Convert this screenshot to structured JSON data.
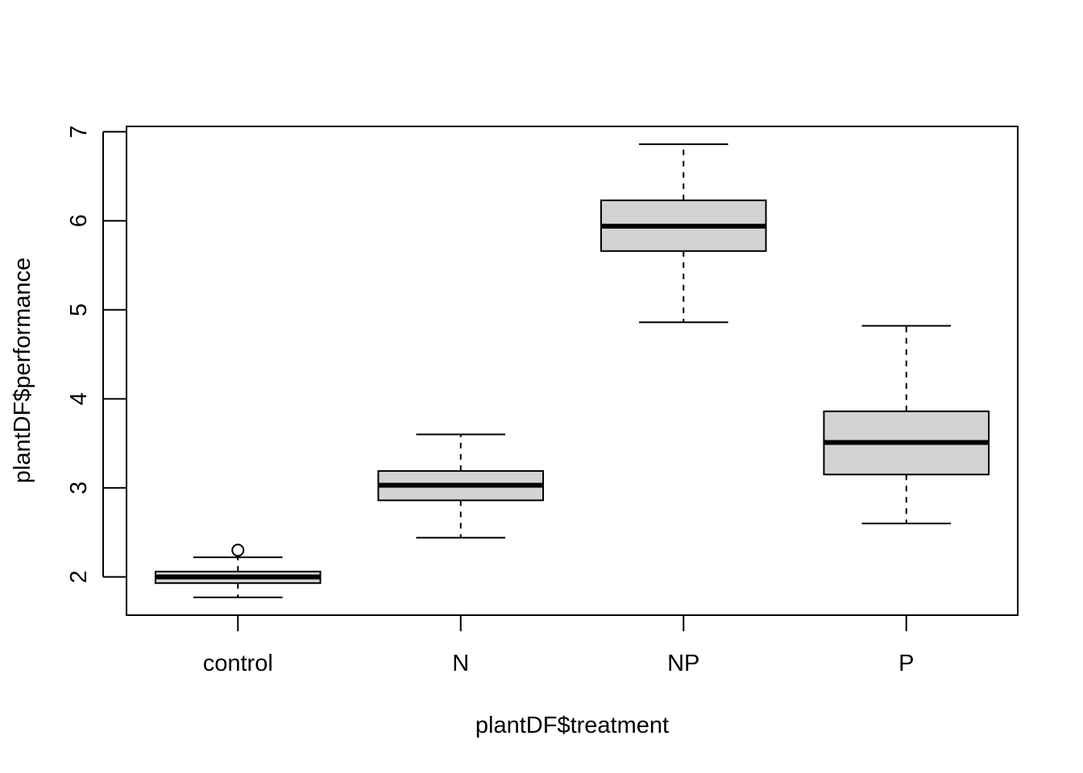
{
  "chart_data": {
    "type": "boxplot",
    "title": "",
    "xlabel": "plantDF$treatment",
    "ylabel": "plantDF$performance",
    "ylim": [
      1.57,
      7.06
    ],
    "yticks": [
      2,
      3,
      4,
      5,
      6,
      7
    ],
    "grid": false,
    "legend": "none",
    "box_fill": "#d3d3d3",
    "categories": [
      "control",
      "N",
      "NP",
      "P"
    ],
    "boxes": [
      {
        "category": "control",
        "whisker_low": 1.77,
        "q1": 1.93,
        "median": 2.0,
        "q3": 2.06,
        "whisker_high": 2.22,
        "outliers": [
          2.3
        ]
      },
      {
        "category": "N",
        "whisker_low": 2.44,
        "q1": 2.86,
        "median": 3.03,
        "q3": 3.19,
        "whisker_high": 3.6,
        "outliers": []
      },
      {
        "category": "NP",
        "whisker_low": 4.86,
        "q1": 5.66,
        "median": 5.94,
        "q3": 6.23,
        "whisker_high": 6.86,
        "outliers": []
      },
      {
        "category": "P",
        "whisker_low": 2.6,
        "q1": 3.15,
        "median": 3.51,
        "q3": 3.86,
        "whisker_high": 4.82,
        "outliers": []
      }
    ]
  }
}
